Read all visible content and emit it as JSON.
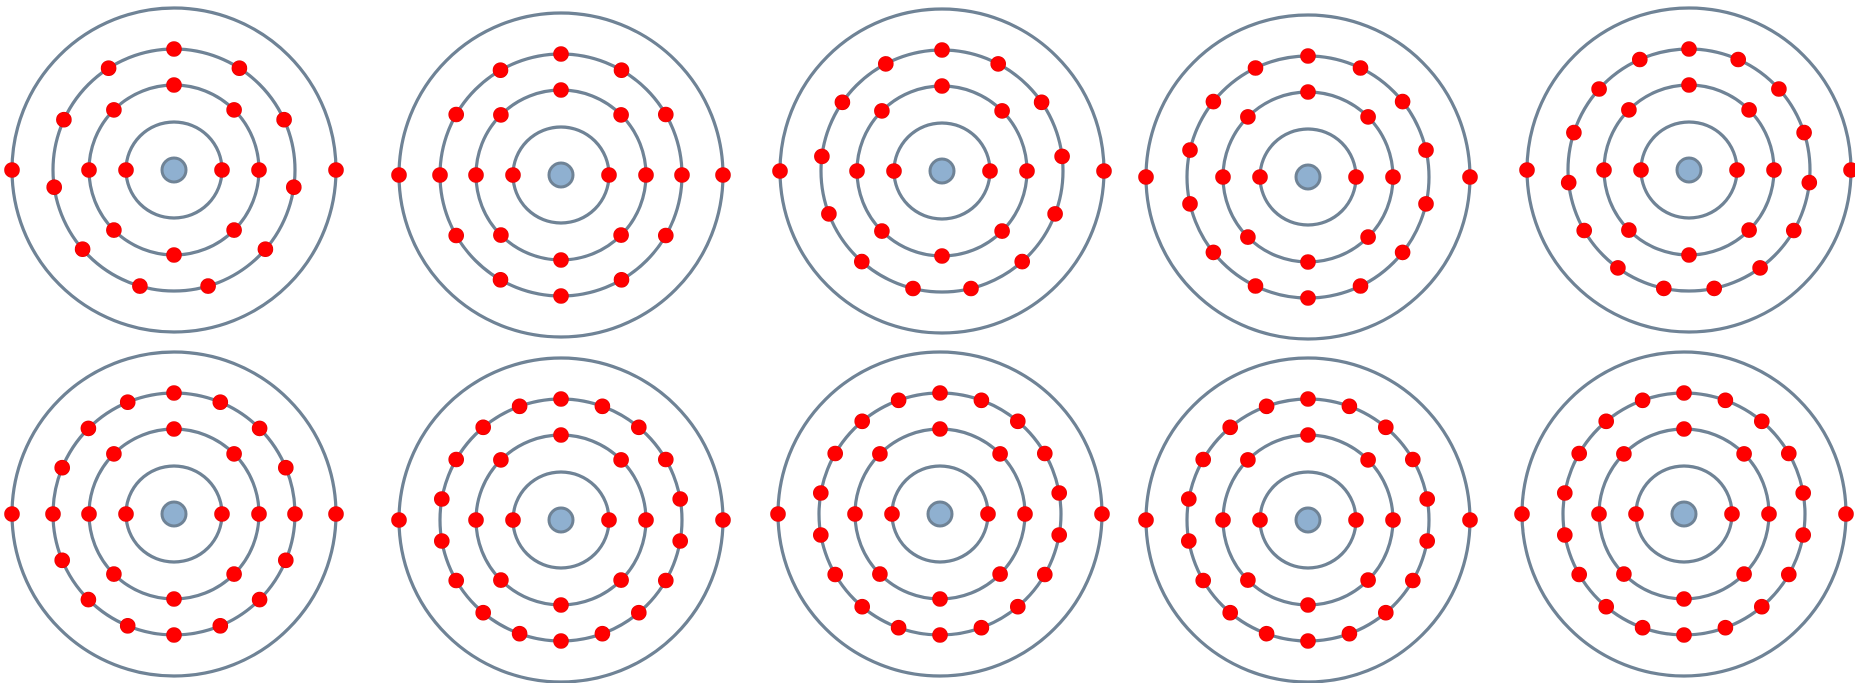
{
  "colors": {
    "background": "#ffffff",
    "shell": "#6f8396",
    "nucleus": "#8fb0d0",
    "electron": "#ff0000"
  },
  "atoms": [
    {
      "shell_electron_counts": [
        2,
        8,
        11,
        2
      ]
    },
    {
      "shell_electron_counts": [
        2,
        8,
        12,
        2
      ]
    },
    {
      "shell_electron_counts": [
        2,
        8,
        13,
        2
      ]
    },
    {
      "shell_electron_counts": [
        2,
        8,
        14,
        2
      ]
    },
    {
      "shell_electron_counts": [
        2,
        8,
        15,
        2
      ]
    },
    {
      "shell_electron_counts": [
        2,
        8,
        16,
        2
      ]
    },
    {
      "shell_electron_counts": [
        2,
        8,
        18,
        2
      ]
    },
    {
      "shell_electron_counts": [
        2,
        8,
        18,
        2
      ]
    },
    {
      "shell_electron_counts": [
        2,
        8,
        18,
        2
      ]
    },
    {
      "shell_electron_counts": [
        2,
        8,
        18,
        2
      ]
    }
  ]
}
